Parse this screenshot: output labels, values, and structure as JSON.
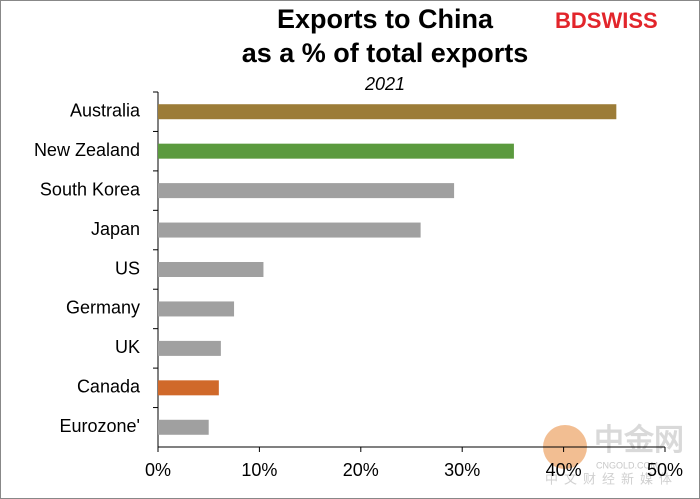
{
  "chart_data": {
    "type": "hbar",
    "title": [
      "Exports to China",
      "as a % of total exports"
    ],
    "subtitle": "2021",
    "brand": "BDSWISS",
    "watermark": {
      "name": "中金网",
      "site": "CNGOLD.COM",
      "tagline": "中文财经新媒体"
    },
    "categories": [
      "Australia",
      "New Zealand",
      "South Korea",
      "Japan",
      "US",
      "Germany",
      "UK",
      "Canada",
      "Eurozone'"
    ],
    "values": [
      45.2,
      35.1,
      29.2,
      25.9,
      10.4,
      7.5,
      6.2,
      6.0,
      5.0
    ],
    "colors": [
      "#9c7c38",
      "#5b9a3e",
      "#a0a0a0",
      "#a0a0a0",
      "#a0a0a0",
      "#a0a0a0",
      "#a0a0a0",
      "#d0692a",
      "#a0a0a0"
    ],
    "xlim": [
      0,
      50
    ],
    "xticks": [
      {
        "value": 0,
        "label": "0%"
      },
      {
        "value": 10,
        "label": "10%"
      },
      {
        "value": 20,
        "label": "20%"
      },
      {
        "value": 30,
        "label": "30%"
      },
      {
        "value": 40,
        "label": "40%"
      },
      {
        "value": 50,
        "label": "50%"
      }
    ],
    "grid": false
  }
}
